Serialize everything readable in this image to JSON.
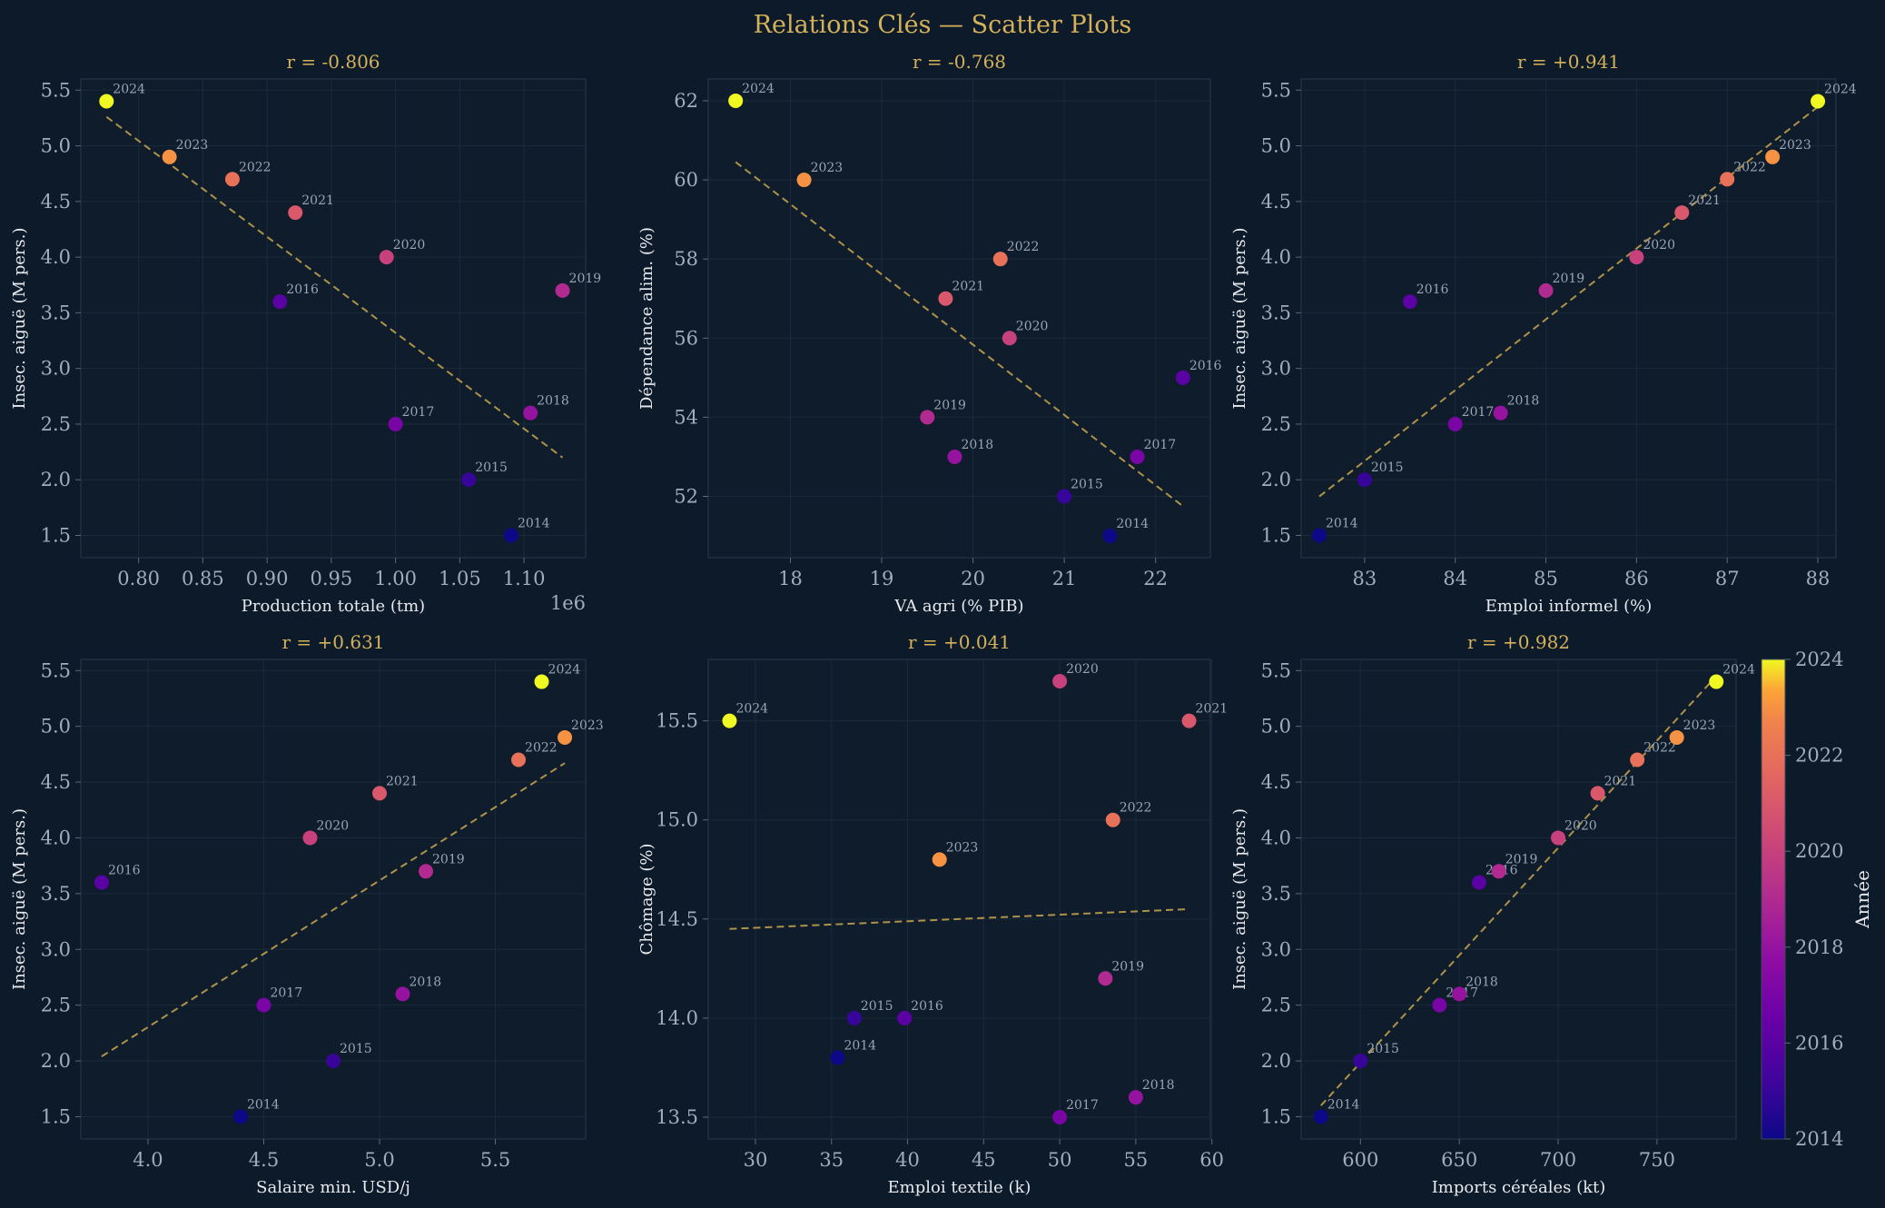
{
  "figure": {
    "title": "Relations Clés — Scatter Plots",
    "colorbar": {
      "label": "Année",
      "ticks": [
        "2014",
        "2016",
        "2018",
        "2020",
        "2022",
        "2024"
      ],
      "min": 2014,
      "max": 2024,
      "colormap": "plasma"
    },
    "colors": {
      "background": "#0d1a29",
      "title": "#d4b15a",
      "trend_line": "#c9a84f"
    }
  },
  "chart_data": [
    {
      "type": "scatter",
      "title": "r = -0.806",
      "xlabel": "Production totale (tm)",
      "ylabel": "Insec. aiguë (M pers.)",
      "x_offset_label": "1e6",
      "xlim": [
        0.755,
        1.148
      ],
      "ylim": [
        1.3,
        5.6
      ],
      "xticks": [
        0.8,
        0.85,
        0.9,
        0.95,
        1.0,
        1.05,
        1.1
      ],
      "xtick_labels": [
        "0.80",
        "0.85",
        "0.90",
        "0.95",
        "1.00",
        "1.05",
        "1.10"
      ],
      "yticks": [
        1.5,
        2.0,
        2.5,
        3.0,
        3.5,
        4.0,
        4.5,
        5.0,
        5.5
      ],
      "ytick_labels": [
        "1.5",
        "2.0",
        "2.5",
        "3.0",
        "3.5",
        "4.0",
        "4.5",
        "5.0",
        "5.5"
      ],
      "trend": [
        [
          0.775,
          5.26
        ],
        [
          1.13,
          2.2
        ]
      ],
      "points": [
        {
          "year": 2014,
          "label": "2014",
          "x": 1.09,
          "y": 1.5
        },
        {
          "year": 2015,
          "label": "2015",
          "x": 1.057,
          "y": 2.0
        },
        {
          "year": 2016,
          "label": "2016",
          "x": 0.91,
          "y": 3.6
        },
        {
          "year": 2017,
          "label": "2017",
          "x": 1.0,
          "y": 2.5
        },
        {
          "year": 2018,
          "label": "2018",
          "x": 1.105,
          "y": 2.6
        },
        {
          "year": 2019,
          "label": "2019",
          "x": 1.13,
          "y": 3.7
        },
        {
          "year": 2020,
          "label": "2020",
          "x": 0.993,
          "y": 4.0
        },
        {
          "year": 2021,
          "label": "2021",
          "x": 0.922,
          "y": 4.4
        },
        {
          "year": 2022,
          "label": "2022",
          "x": 0.873,
          "y": 4.7
        },
        {
          "year": 2023,
          "label": "2023",
          "x": 0.824,
          "y": 4.9
        },
        {
          "year": 2024,
          "label": "2024",
          "x": 0.775,
          "y": 5.4
        }
      ]
    },
    {
      "type": "scatter",
      "title": "r = -0.768",
      "xlabel": "VA agri (% PIB)",
      "ylabel": "Dépendance alim. (%)",
      "xlim": [
        17.1,
        22.6
      ],
      "ylim": [
        50.45,
        62.55
      ],
      "xticks": [
        18,
        19,
        20,
        21,
        22
      ],
      "xtick_labels": [
        "18",
        "19",
        "20",
        "21",
        "22"
      ],
      "yticks": [
        52,
        54,
        56,
        58,
        60,
        62
      ],
      "ytick_labels": [
        "52",
        "54",
        "56",
        "58",
        "60",
        "62"
      ],
      "trend": [
        [
          17.4,
          60.45
        ],
        [
          22.3,
          51.75
        ]
      ],
      "points": [
        {
          "year": 2014,
          "label": "2014",
          "x": 21.5,
          "y": 51.0
        },
        {
          "year": 2015,
          "label": "2015",
          "x": 21.0,
          "y": 52.0
        },
        {
          "year": 2016,
          "label": "2016",
          "x": 22.3,
          "y": 55.0
        },
        {
          "year": 2017,
          "label": "2017",
          "x": 21.8,
          "y": 53.0
        },
        {
          "year": 2018,
          "label": "2018",
          "x": 19.8,
          "y": 53.0
        },
        {
          "year": 2019,
          "label": "2019",
          "x": 19.5,
          "y": 54.0
        },
        {
          "year": 2020,
          "label": "2020",
          "x": 20.4,
          "y": 56.0
        },
        {
          "year": 2021,
          "label": "2021",
          "x": 19.7,
          "y": 57.0
        },
        {
          "year": 2022,
          "label": "2022",
          "x": 20.3,
          "y": 58.0
        },
        {
          "year": 2023,
          "label": "2023",
          "x": 18.15,
          "y": 60.0
        },
        {
          "year": 2024,
          "label": "2024",
          "x": 17.4,
          "y": 62.0
        }
      ]
    },
    {
      "type": "scatter",
      "title": "r = +0.941",
      "xlabel": "Emploi informel (%)",
      "ylabel": "Insec. aiguë (M pers.)",
      "xlim": [
        82.3,
        88.2
      ],
      "ylim": [
        1.3,
        5.6
      ],
      "xticks": [
        83,
        84,
        85,
        86,
        87,
        88
      ],
      "xtick_labels": [
        "83",
        "84",
        "85",
        "86",
        "87",
        "88"
      ],
      "yticks": [
        1.5,
        2.0,
        2.5,
        3.0,
        3.5,
        4.0,
        4.5,
        5.0,
        5.5
      ],
      "ytick_labels": [
        "1.5",
        "2.0",
        "2.5",
        "3.0",
        "3.5",
        "4.0",
        "4.5",
        "5.0",
        "5.5"
      ],
      "trend": [
        [
          82.5,
          1.85
        ],
        [
          88.0,
          5.35
        ]
      ],
      "points": [
        {
          "year": 2014,
          "label": "2014",
          "x": 82.5,
          "y": 1.5
        },
        {
          "year": 2015,
          "label": "2015",
          "x": 83.0,
          "y": 2.0
        },
        {
          "year": 2016,
          "label": "2016",
          "x": 83.5,
          "y": 3.6
        },
        {
          "year": 2017,
          "label": "2017",
          "x": 84.0,
          "y": 2.5
        },
        {
          "year": 2018,
          "label": "2018",
          "x": 84.5,
          "y": 2.6
        },
        {
          "year": 2019,
          "label": "2019",
          "x": 85.0,
          "y": 3.7
        },
        {
          "year": 2020,
          "label": "2020",
          "x": 86.0,
          "y": 4.0
        },
        {
          "year": 2021,
          "label": "2021",
          "x": 86.5,
          "y": 4.4
        },
        {
          "year": 2022,
          "label": "2022",
          "x": 87.0,
          "y": 4.7
        },
        {
          "year": 2023,
          "label": "2023",
          "x": 87.5,
          "y": 4.9
        },
        {
          "year": 2024,
          "label": "2024",
          "x": 88.0,
          "y": 5.4
        }
      ]
    },
    {
      "type": "scatter",
      "title": "r = +0.631",
      "xlabel": "Salaire min. USD/j",
      "ylabel": "Insec. aiguë (M pers.)",
      "xlim": [
        3.71,
        5.89
      ],
      "ylim": [
        1.3,
        5.6
      ],
      "xticks": [
        4.0,
        4.5,
        5.0,
        5.5
      ],
      "xtick_labels": [
        "4.0",
        "4.5",
        "5.0",
        "5.5"
      ],
      "yticks": [
        1.5,
        2.0,
        2.5,
        3.0,
        3.5,
        4.0,
        4.5,
        5.0,
        5.5
      ],
      "ytick_labels": [
        "1.5",
        "2.0",
        "2.5",
        "3.0",
        "3.5",
        "4.0",
        "4.5",
        "5.0",
        "5.5"
      ],
      "trend": [
        [
          3.8,
          2.04
        ],
        [
          5.8,
          4.67
        ]
      ],
      "points": [
        {
          "year": 2014,
          "label": "2014",
          "x": 4.4,
          "y": 1.5
        },
        {
          "year": 2015,
          "label": "2015",
          "x": 4.8,
          "y": 2.0
        },
        {
          "year": 2016,
          "label": "2016",
          "x": 3.8,
          "y": 3.6
        },
        {
          "year": 2017,
          "label": "2017",
          "x": 4.5,
          "y": 2.5
        },
        {
          "year": 2018,
          "label": "2018",
          "x": 5.1,
          "y": 2.6
        },
        {
          "year": 2019,
          "label": "2019",
          "x": 5.2,
          "y": 3.7
        },
        {
          "year": 2020,
          "label": "2020",
          "x": 4.7,
          "y": 4.0
        },
        {
          "year": 2021,
          "label": "2021",
          "x": 5.0,
          "y": 4.4
        },
        {
          "year": 2022,
          "label": "2022",
          "x": 5.6,
          "y": 4.7
        },
        {
          "year": 2023,
          "label": "2023",
          "x": 5.8,
          "y": 4.9
        },
        {
          "year": 2024,
          "label": "2024",
          "x": 5.7,
          "y": 5.4
        }
      ]
    },
    {
      "type": "scatter",
      "title": "r = +0.041",
      "xlabel": "Emploi textile (k)",
      "ylabel": "Chômage (%)",
      "xlim": [
        26.9,
        59.9
      ],
      "ylim": [
        13.39,
        15.81
      ],
      "xticks": [
        30,
        35,
        40,
        45,
        50,
        55,
        60
      ],
      "xtick_labels": [
        "30",
        "35",
        "40",
        "45",
        "50",
        "55",
        "60"
      ],
      "yticks": [
        13.5,
        14.0,
        14.5,
        15.0,
        15.5
      ],
      "ytick_labels": [
        "13.5",
        "14.0",
        "14.5",
        "15.0",
        "15.5"
      ],
      "trend": [
        [
          28.3,
          14.45
        ],
        [
          58.5,
          14.55
        ]
      ],
      "points": [
        {
          "year": 2014,
          "label": "2014",
          "x": 35.4,
          "y": 13.8
        },
        {
          "year": 2015,
          "label": "2015",
          "x": 36.5,
          "y": 14.0
        },
        {
          "year": 2016,
          "label": "2016",
          "x": 39.8,
          "y": 14.0
        },
        {
          "year": 2017,
          "label": "2017",
          "x": 50.0,
          "y": 13.5
        },
        {
          "year": 2018,
          "label": "2018",
          "x": 55.0,
          "y": 13.6
        },
        {
          "year": 2019,
          "label": "2019",
          "x": 53.0,
          "y": 14.2
        },
        {
          "year": 2020,
          "label": "2020",
          "x": 50.0,
          "y": 15.7
        },
        {
          "year": 2021,
          "label": "2021",
          "x": 58.5,
          "y": 15.5
        },
        {
          "year": 2022,
          "label": "2022",
          "x": 53.5,
          "y": 15.0
        },
        {
          "year": 2023,
          "label": "2023",
          "x": 42.1,
          "y": 14.8
        },
        {
          "year": 2024,
          "label": "2024",
          "x": 28.3,
          "y": 15.5
        }
      ]
    },
    {
      "type": "scatter",
      "title": "r = +0.982",
      "xlabel": "Imports céréales (kt)",
      "ylabel": "Insec. aiguë (M pers.)",
      "xlim": [
        570,
        790
      ],
      "ylim": [
        1.3,
        5.6
      ],
      "xticks": [
        600,
        650,
        700,
        750
      ],
      "xtick_labels": [
        "600",
        "650",
        "700",
        "750"
      ],
      "yticks": [
        1.5,
        2.0,
        2.5,
        3.0,
        3.5,
        4.0,
        4.5,
        5.0,
        5.5
      ],
      "ytick_labels": [
        "1.5",
        "2.0",
        "2.5",
        "3.0",
        "3.5",
        "4.0",
        "4.5",
        "5.0",
        "5.5"
      ],
      "trend": [
        [
          580,
          1.6
        ],
        [
          780,
          5.45
        ]
      ],
      "points": [
        {
          "year": 2014,
          "label": "2014",
          "x": 580,
          "y": 1.5
        },
        {
          "year": 2015,
          "label": "2015",
          "x": 600,
          "y": 2.0
        },
        {
          "year": 2016,
          "label": "2016",
          "x": 660,
          "y": 3.6
        },
        {
          "year": 2017,
          "label": "2017",
          "x": 640,
          "y": 2.5
        },
        {
          "year": 2018,
          "label": "2018",
          "x": 650,
          "y": 2.6
        },
        {
          "year": 2019,
          "label": "2019",
          "x": 670,
          "y": 3.7
        },
        {
          "year": 2020,
          "label": "2020",
          "x": 700,
          "y": 4.0
        },
        {
          "year": 2021,
          "label": "2021",
          "x": 720,
          "y": 4.4
        },
        {
          "year": 2022,
          "label": "2022",
          "x": 740,
          "y": 4.7
        },
        {
          "year": 2023,
          "label": "2023",
          "x": 760,
          "y": 4.9
        },
        {
          "year": 2024,
          "label": "2024",
          "x": 780,
          "y": 5.4
        }
      ]
    }
  ]
}
